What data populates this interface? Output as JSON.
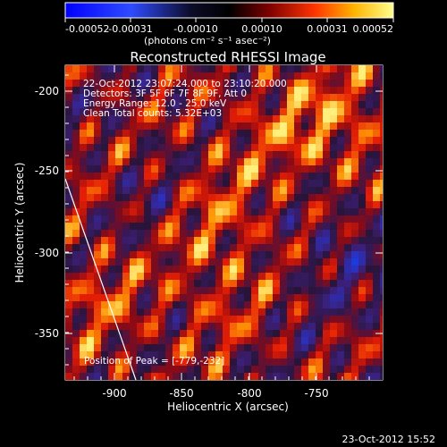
{
  "image": {
    "title": "Reconstructed RHESSI Image",
    "colorbar": {
      "ticks": [
        "-0.00052",
        "-0.00031",
        "-0.00010",
        "0.00010",
        "0.00031",
        "0.00052"
      ],
      "unit_label": "(photons cm⁻² s⁻¹ asec⁻²)"
    },
    "info_lines": [
      "22-Oct-2012 23:07:24.000 to 23:10:20.000",
      "Detectors: 3F 5F 6F 7F 8F 9F, Att 0",
      "Energy Range: 12.0 - 25.0 keV",
      "Clean     Total counts: 5.32E+03"
    ],
    "peak_label": "Position of Peak = [-779,-232]",
    "x_axis": {
      "label": "Heliocentric X (arcsec)",
      "ticks": [
        "-900",
        "-850",
        "-800",
        "-750"
      ]
    },
    "y_axis": {
      "label": "Heliocentric Y (arcsec)",
      "ticks": [
        "-200",
        "-250",
        "-300",
        "-350"
      ]
    },
    "timestamp": "23-Oct-2012 15:52",
    "colors": {
      "background": "#000000",
      "text": "#ffffff",
      "colorbar_low": "#0000ff",
      "colorbar_mid": "#000000",
      "colorbar_high": "#ffff00"
    }
  }
}
